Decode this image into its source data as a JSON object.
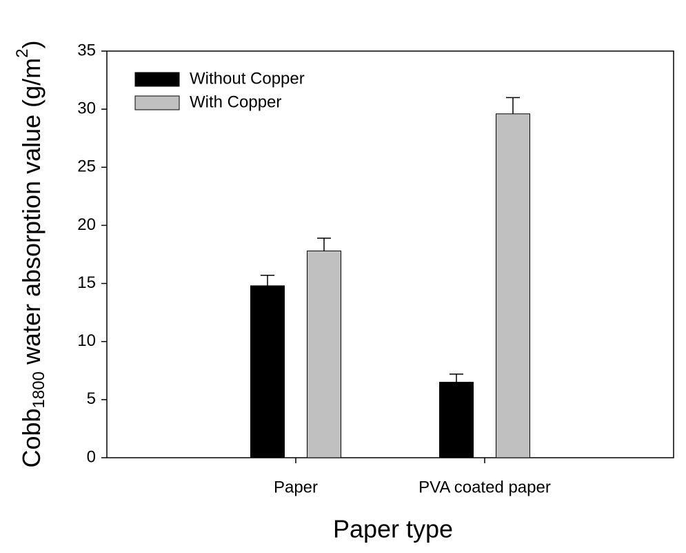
{
  "chart_data": {
    "type": "bar",
    "ylabel": [
      "Cobb",
      "1800",
      " water absorption value (g/m",
      "2",
      ")"
    ],
    "xlabel": "Paper type",
    "categories": [
      "Paper",
      "PVA coated paper"
    ],
    "series": [
      {
        "name": "Without Copper",
        "color": "#000000",
        "values": [
          14.8,
          6.5
        ],
        "errors": [
          0.9,
          0.7
        ]
      },
      {
        "name": "With Copper",
        "color": "#c0c0c0",
        "values": [
          17.8,
          29.6
        ],
        "errors": [
          1.1,
          1.4
        ]
      }
    ],
    "ylim": [
      0,
      35
    ],
    "yticks": [
      0,
      5,
      10,
      15,
      20,
      25,
      30,
      35
    ],
    "legend": "upper left",
    "grid": false
  }
}
